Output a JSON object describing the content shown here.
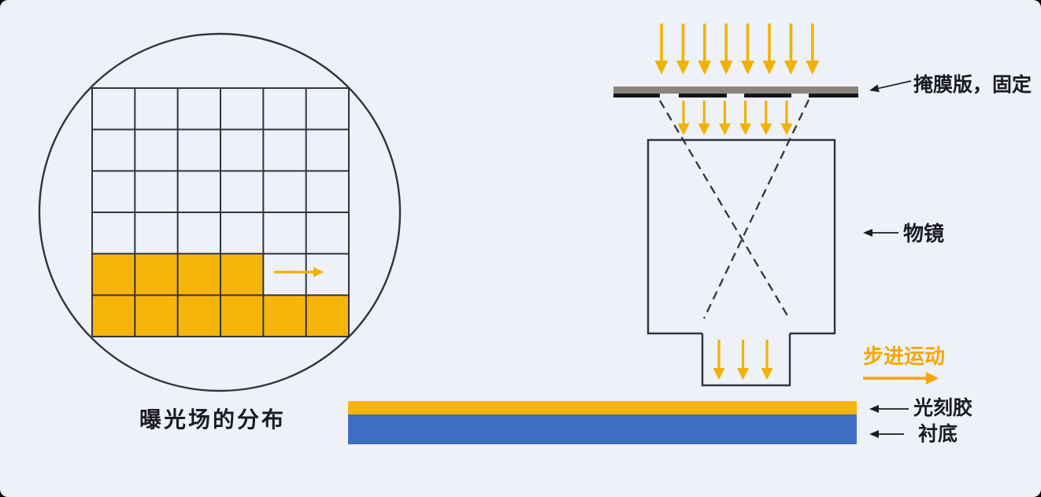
{
  "colors": {
    "background": "#EEF1F7",
    "outer_background": "#000000",
    "line_dark": "#33333F",
    "exposure_yellow": "#F7B50C",
    "beam_yellow": "#F2B205",
    "mask_gray": "#8B837E",
    "mask_dark": "#14141C",
    "substrate_blue": "#3D6EC4",
    "label_dark": "#1B1B24",
    "step_orange": "#F5A602"
  },
  "wafer": {
    "caption": "曝光场的分布",
    "grid_rows": 6,
    "grid_cols": 6,
    "exposed_cells": [
      [
        5,
        1
      ],
      [
        5,
        2
      ],
      [
        5,
        3
      ],
      [
        5,
        4
      ],
      [
        6,
        1
      ],
      [
        6,
        2
      ],
      [
        6,
        3
      ],
      [
        6,
        4
      ],
      [
        6,
        5
      ],
      [
        6,
        6
      ]
    ],
    "scan_arrow": true
  },
  "beams": {
    "incident_count": 8,
    "through_mask_count": 6,
    "projected_count": 3
  },
  "labels": {
    "mask": "掩膜版，固定",
    "lens": "物镜",
    "step_motion": "步进运动",
    "photoresist": "光刻胶",
    "substrate": "衬底"
  }
}
